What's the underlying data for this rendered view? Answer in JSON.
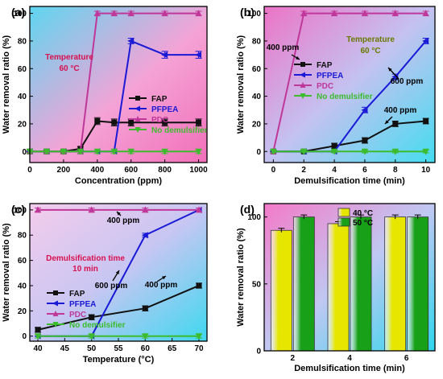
{
  "colors": {
    "FAP": "#111111",
    "PFPEA": "#1a1ad6",
    "PDC": "#c0379a",
    "NoDemulsifier": "#3cbc2c",
    "bar40": "#e6e600",
    "bar50": "#18a018"
  },
  "chart_data": [
    {
      "panel_label": "(a)",
      "type": "line",
      "xlabel": "Concentration (ppm)",
      "ylabel": "Water removal ratio (%)",
      "xlim": [
        0,
        1050
      ],
      "ylim": [
        -8,
        105
      ],
      "xticks": [
        0,
        200,
        400,
        600,
        800,
        1000
      ],
      "yticks": [
        0,
        20,
        40,
        60,
        80,
        100
      ],
      "background": "gradient pink-to-cyan",
      "legend_position": "center-right",
      "annotations": [
        "Temperature",
        "60 °C"
      ],
      "series": [
        {
          "name": "FAP",
          "color_key": "FAP",
          "marker": "square",
          "x": [
            0,
            100,
            200,
            300,
            400,
            500,
            600,
            800,
            1000
          ],
          "y": [
            0,
            0,
            0,
            2,
            22,
            21,
            21,
            21,
            21
          ],
          "err": [
            1.5,
            1.5,
            1.5,
            1.5,
            2.5,
            2.5,
            2.5,
            2.5,
            2.5
          ]
        },
        {
          "name": "PFPEA",
          "color_key": "PFPEA",
          "marker": "triangle-left",
          "x": [
            0,
            100,
            200,
            300,
            400,
            500,
            600,
            800,
            1000
          ],
          "y": [
            0,
            0,
            0,
            0,
            0,
            0,
            80,
            70,
            70
          ],
          "err": [
            0,
            0,
            0,
            0,
            0,
            0,
            2,
            2.5,
            2.5
          ]
        },
        {
          "name": "PDC",
          "color_key": "PDC",
          "marker": "triangle-up",
          "x": [
            0,
            100,
            200,
            300,
            400,
            500,
            600,
            800,
            1000
          ],
          "y": [
            0,
            0,
            0,
            0,
            100,
            100,
            100,
            100,
            100
          ],
          "err": [
            0,
            0,
            0,
            0,
            1.5,
            1.5,
            1.5,
            1.5,
            1.5
          ]
        },
        {
          "name": "No demulsifier",
          "color_key": "NoDemulsifier",
          "marker": "triangle-down",
          "x": [
            0,
            100,
            200,
            300,
            400,
            500,
            600,
            800,
            1000
          ],
          "y": [
            0,
            0,
            0,
            0,
            0,
            0,
            0,
            0,
            0
          ],
          "err": [
            1.5,
            1.5,
            1.5,
            1.5,
            1.5,
            1.5,
            1.5,
            1.5,
            1.5
          ]
        }
      ]
    },
    {
      "panel_label": "(b)",
      "type": "line",
      "xlabel": "Demulsification time (min)",
      "ylabel": "Water removal ratio (%)",
      "xlim": [
        -0.6,
        10.6
      ],
      "ylim": [
        -8,
        105
      ],
      "xticks": [
        0,
        2,
        4,
        6,
        8,
        10
      ],
      "yticks": [
        0,
        20,
        40,
        60,
        80,
        100
      ],
      "background": "gradient pink-to-cyan",
      "legend_position": "center-left",
      "annotations": [
        "Temperature",
        "60 °C",
        "400 ppm",
        "600 ppm",
        "400 ppm"
      ],
      "series": [
        {
          "name": "FAP",
          "color_key": "FAP",
          "marker": "square",
          "x": [
            0,
            2,
            4,
            6,
            8,
            10
          ],
          "y": [
            0,
            0,
            4,
            8,
            20,
            22
          ],
          "err": [
            1,
            1,
            2,
            2,
            2,
            2
          ]
        },
        {
          "name": "PFPEA",
          "color_key": "PFPEA",
          "marker": "triangle-left",
          "x": [
            0,
            2,
            4,
            6,
            8,
            10
          ],
          "y": [
            0,
            0,
            0,
            30,
            54,
            80
          ],
          "err": [
            0,
            0,
            0,
            2,
            2,
            2
          ]
        },
        {
          "name": "PDC",
          "color_key": "PDC",
          "marker": "triangle-up",
          "x": [
            0,
            2,
            4,
            6,
            8,
            10
          ],
          "y": [
            0,
            100,
            100,
            100,
            100,
            100
          ],
          "err": [
            0,
            1.5,
            1.5,
            1.5,
            1.5,
            1.5
          ]
        },
        {
          "name": "No demulsifier",
          "color_key": "NoDemulsifier",
          "marker": "triangle-down",
          "x": [
            0,
            2,
            4,
            6,
            8,
            10
          ],
          "y": [
            0,
            0,
            0,
            0,
            0,
            0
          ],
          "err": [
            1,
            1,
            1,
            1,
            1,
            1
          ]
        }
      ]
    },
    {
      "panel_label": "(c)",
      "type": "line",
      "xlabel": "Temperature (°C)",
      "ylabel": "Water removal ratio (%)",
      "xlim": [
        38.5,
        71.5
      ],
      "ylim": [
        -4,
        105
      ],
      "xticks": [
        40,
        45,
        50,
        55,
        60,
        65,
        70
      ],
      "yticks": [
        0,
        20,
        40,
        60,
        80,
        100
      ],
      "background": "gradient pink-to-cyan",
      "legend_position": "center-left",
      "annotations": [
        "Demulsification time",
        "10 min",
        "400 ppm",
        "600 ppm",
        "400 ppm"
      ],
      "series": [
        {
          "name": "FAP",
          "color_key": "FAP",
          "marker": "square",
          "x": [
            40,
            50,
            60,
            70
          ],
          "y": [
            5,
            15,
            22,
            40
          ],
          "err": [
            2,
            2,
            2,
            2
          ]
        },
        {
          "name": "PFPEA",
          "color_key": "PFPEA",
          "marker": "triangle-left",
          "x": [
            40,
            50,
            60,
            70
          ],
          "y": [
            0,
            0,
            80,
            100
          ],
          "err": [
            0,
            0,
            1.5,
            1.5
          ]
        },
        {
          "name": "PDC",
          "color_key": "PDC",
          "marker": "triangle-up",
          "x": [
            40,
            50,
            60,
            70
          ],
          "y": [
            100,
            100,
            100,
            100
          ],
          "err": [
            1.5,
            1.5,
            1.5,
            1.5
          ]
        },
        {
          "name": "No demulsifier",
          "color_key": "NoDemulsifier",
          "marker": "triangle-down",
          "x": [
            40,
            50,
            60,
            70
          ],
          "y": [
            0,
            0,
            0,
            0
          ],
          "err": [
            1.5,
            1.5,
            1.5,
            1.5
          ]
        }
      ]
    },
    {
      "panel_label": "(d)",
      "type": "bar",
      "xlabel": "Demulsification time (min)",
      "ylabel": "Water removal ratio (%)",
      "categories": [
        "2",
        "4",
        "6"
      ],
      "ylim": [
        0,
        110
      ],
      "yticks": [
        0,
        50,
        100
      ],
      "background": "gradient pink-to-cyan",
      "legend_position": "top-center",
      "series": [
        {
          "name": "40 °C",
          "color_key": "bar40",
          "values": [
            90,
            95,
            100
          ],
          "err": [
            1.5,
            1.5,
            1.5
          ]
        },
        {
          "name": "50 °C",
          "color_key": "bar50",
          "values": [
            100,
            100,
            100
          ],
          "err": [
            1.5,
            1.5,
            1.5
          ]
        }
      ]
    }
  ]
}
